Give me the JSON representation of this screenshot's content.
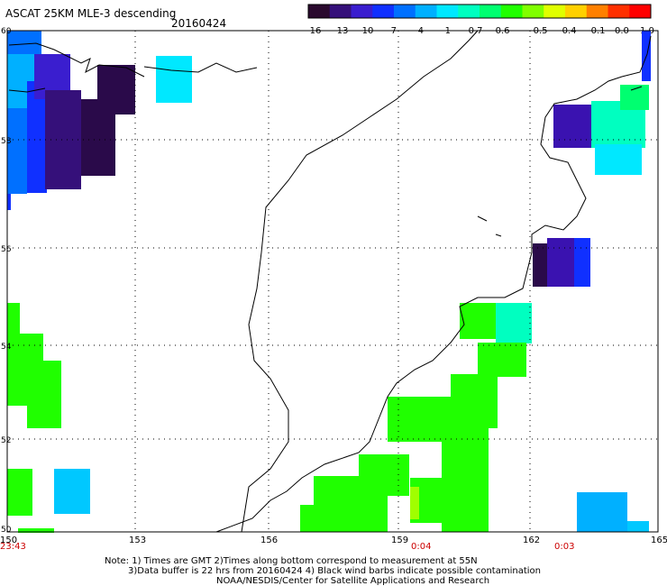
{
  "title": "ASCAT 25KM MLE-3 descending",
  "date": "20160424",
  "colorbar": {
    "labels": [
      "-16",
      "-13",
      "-10",
      "-7",
      "-4",
      "-1",
      "-0.7",
      "-0.6",
      "-0.5",
      "-0.4",
      "-0.1",
      "0.0",
      "1.0"
    ],
    "colors": [
      "#2a0a2e",
      "#35107a",
      "#3a1ecf",
      "#1030ff",
      "#0070ff",
      "#00b0ff",
      "#00e8ff",
      "#00ffc0",
      "#00ff70",
      "#20ff00",
      "#80ff00",
      "#e0ff00",
      "#ffd000",
      "#ff8000",
      "#ff3000",
      "#ff0000"
    ]
  },
  "axes": {
    "x_labels": [
      "150",
      "153",
      "156",
      "159",
      "162",
      "165"
    ],
    "y_labels": [
      "60",
      "58",
      "56",
      "54",
      "52",
      "50"
    ]
  },
  "pass_times": [
    "23:43",
    "0:04",
    "0:03"
  ],
  "notes": {
    "line1": "Note: 1) Times are GMT 2)Times along bottom correspond to measurement at 55N",
    "line2": "3)Data buffer is 22 hrs from 20160424 4) Black wind barbs indicate possible contamination",
    "line3": "NOAA/NESDIS/Center for Satellite Applications and Research"
  },
  "legend_colors": {
    "purple": "#2a0a4a",
    "indigo": "#3a12b0",
    "blue": "#1030ff",
    "lightblue": "#00b0ff",
    "cyan": "#00e8ff",
    "aqua": "#00ffc0",
    "green": "#20ff00",
    "lime": "#a0ff00"
  }
}
